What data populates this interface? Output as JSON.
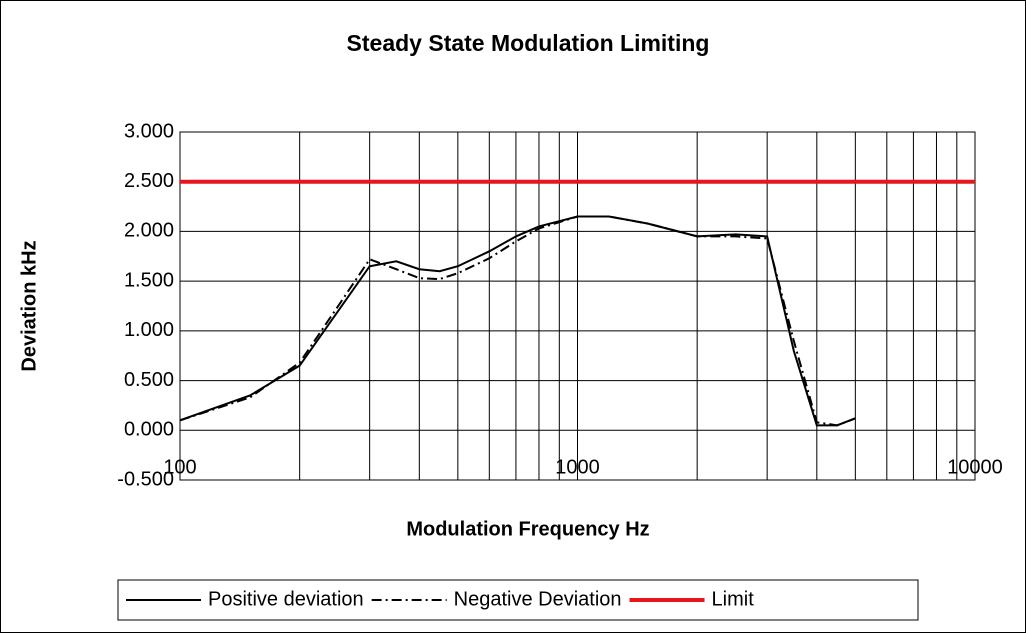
{
  "chart_data": {
    "type": "line",
    "title": "Steady State Modulation Limiting",
    "xlabel": "Modulation Frequency Hz",
    "ylabel": "Deviation kHz",
    "x": [
      100,
      150,
      200,
      250,
      300,
      350,
      400,
      450,
      500,
      600,
      700,
      800,
      1000,
      1200,
      1500,
      2000,
      2500,
      3000,
      3500,
      4000,
      4500,
      5000
    ],
    "series": [
      {
        "name": "Positive deviation",
        "color": "#000000",
        "dash": "solid",
        "values": [
          0.1,
          0.35,
          0.65,
          1.2,
          1.65,
          1.7,
          1.62,
          1.6,
          1.65,
          1.8,
          1.95,
          2.05,
          2.15,
          2.15,
          2.08,
          1.95,
          1.97,
          1.95,
          0.8,
          0.05,
          0.05,
          0.12
        ]
      },
      {
        "name": "Negative Deviation",
        "color": "#000000",
        "dash": "dashdot",
        "values": [
          0.1,
          0.33,
          0.68,
          1.25,
          1.72,
          1.62,
          1.53,
          1.52,
          1.58,
          1.73,
          1.9,
          2.03,
          2.15,
          2.15,
          2.08,
          1.95,
          1.95,
          1.93,
          0.9,
          0.08,
          0.05,
          0.12
        ]
      },
      {
        "name": "Limit",
        "color": "#e8161b",
        "dash": "solid",
        "x": [
          100,
          10000
        ],
        "values": [
          2.5,
          2.5
        ]
      }
    ],
    "xscale": "log",
    "xlim": [
      100,
      10000
    ],
    "xticks": [
      100,
      1000,
      10000
    ],
    "ylim": [
      -0.5,
      3
    ],
    "yticks": [
      {
        "value": -0.5,
        "label": "-0.500"
      },
      {
        "value": 0,
        "label": "0.000"
      },
      {
        "value": 0.5,
        "label": "0.500"
      },
      {
        "value": 1,
        "label": "1.000"
      },
      {
        "value": 1.5,
        "label": "1.500"
      },
      {
        "value": 2,
        "label": "2.000"
      },
      {
        "value": 2.5,
        "label": "2.500"
      },
      {
        "value": 3,
        "label": "3.000"
      }
    ],
    "grid": true,
    "legend": "bottom"
  }
}
